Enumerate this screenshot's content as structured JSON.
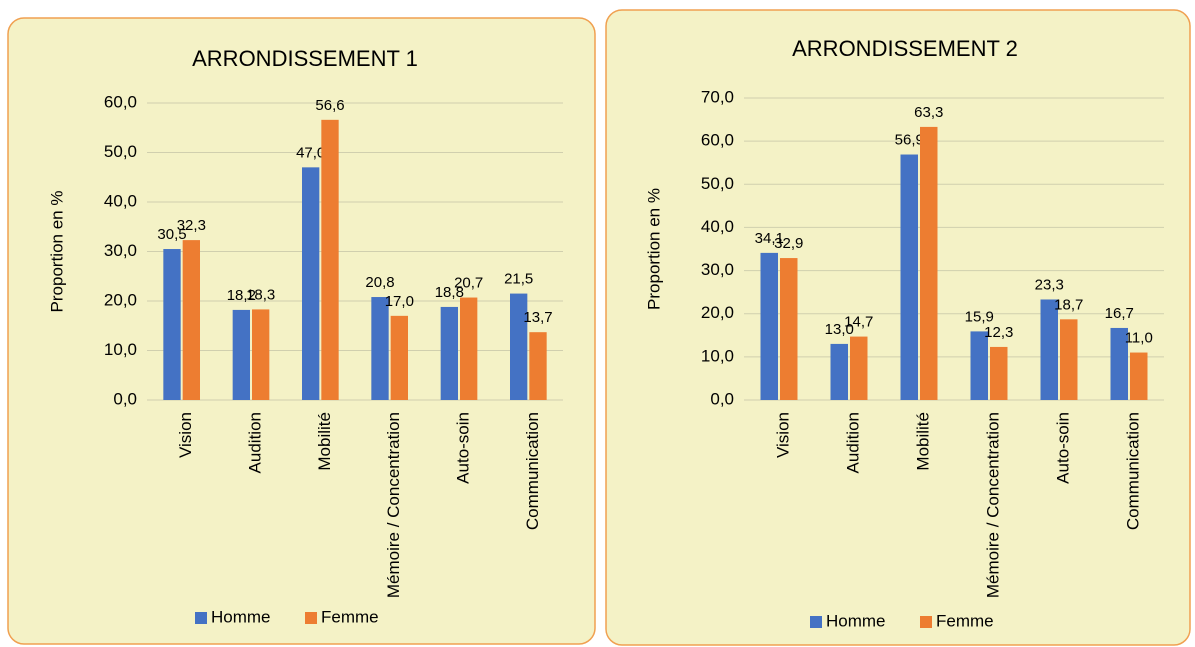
{
  "chart_data": [
    {
      "type": "bar",
      "title": "ARRONDISSEMENT 1",
      "y_label": "Proportion en %",
      "categories": [
        "Vision",
        "Audition",
        "Mobilité",
        "Mémoire / Concentration",
        "Auto-soin",
        "Communication"
      ],
      "series": [
        {
          "name": "Homme",
          "color": "#4472c4",
          "values": [
            30.5,
            18.2,
            47.0,
            20.8,
            18.8,
            21.5
          ],
          "value_labels": [
            "30,5",
            "18,2",
            "47,0",
            "20,8",
            "18,8",
            "21,5"
          ]
        },
        {
          "name": "Femme",
          "color": "#ed7d31",
          "values": [
            32.3,
            18.3,
            56.6,
            17.0,
            20.7,
            13.7
          ],
          "value_labels": [
            "32,3",
            "18,3",
            "56,6",
            "17,0",
            "20,7",
            "13,7"
          ]
        }
      ],
      "ylim": [
        0,
        60
      ],
      "yticks": [
        {
          "value": 0,
          "label": "0,0"
        },
        {
          "value": 10,
          "label": "10,0"
        },
        {
          "value": 20,
          "label": "20,0"
        },
        {
          "value": 30,
          "label": "30,0"
        },
        {
          "value": 40,
          "label": "40,0"
        },
        {
          "value": 50,
          "label": "50,0"
        },
        {
          "value": 60,
          "label": "60,0"
        }
      ],
      "grid": true,
      "legend": "bottom"
    },
    {
      "type": "bar",
      "title": "ARRONDISSEMENT 2",
      "y_label": "Proportion en %",
      "categories": [
        "Vision",
        "Audition",
        "Mobilité",
        "Mémoire / Concentration",
        "Auto-soin",
        "Communication"
      ],
      "series": [
        {
          "name": "Homme",
          "color": "#4472c4",
          "values": [
            34.1,
            13.0,
            56.9,
            15.9,
            23.3,
            16.7
          ],
          "value_labels": [
            "34,1",
            "13,0",
            "56,9",
            "15,9",
            "23,3",
            "16,7"
          ]
        },
        {
          "name": "Femme",
          "color": "#ed7d31",
          "values": [
            32.9,
            14.7,
            63.3,
            12.3,
            18.7,
            11.0
          ],
          "value_labels": [
            "32,9",
            "14,7",
            "63,3",
            "12,3",
            "18,7",
            "11,0"
          ]
        }
      ],
      "ylim": [
        0,
        70
      ],
      "yticks": [
        {
          "value": 0,
          "label": "0,0"
        },
        {
          "value": 10,
          "label": "10,0"
        },
        {
          "value": 20,
          "label": "20,0"
        },
        {
          "value": 30,
          "label": "30,0"
        },
        {
          "value": 40,
          "label": "40,0"
        },
        {
          "value": 50,
          "label": "50,0"
        },
        {
          "value": 60,
          "label": "60,0"
        },
        {
          "value": 70,
          "label": "70,0"
        }
      ],
      "grid": true,
      "legend": "bottom"
    }
  ]
}
